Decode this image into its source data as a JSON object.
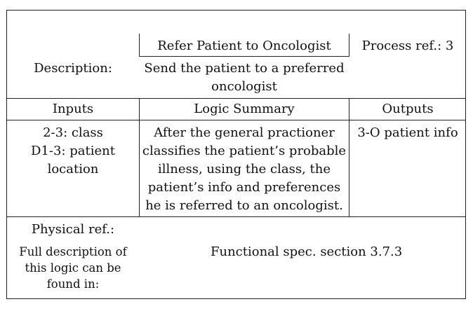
{
  "process": {
    "title": "Refer Patient to Oncologist",
    "ref": "Process ref.: 3"
  },
  "description": {
    "label": "Description:",
    "text": "Send the patient to a preferred\noncologist"
  },
  "headers": {
    "inputs": "Inputs",
    "logic": "Logic Summary",
    "outputs": "Outputs"
  },
  "row": {
    "inputs": "2-3: class\nD1-3: patient\nlocation",
    "logic": "After the general practioner\nclassifies the patient’s probable\nillness, using the class, the\npatient’s info and preferences\nhe is referred to an oncologist.",
    "outputs": "3-O patient info"
  },
  "physical": {
    "label": "Physical ref.:",
    "note": "Full description of\nthis logic can be\nfound in:",
    "value": "Functional spec. section 3.7.3"
  }
}
